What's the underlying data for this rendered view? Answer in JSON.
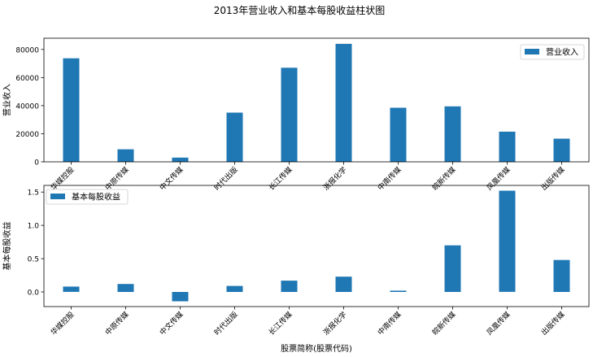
{
  "chart_data": [
    {
      "type": "bar",
      "title": "2013年营业收入和基本每股收益柱状图",
      "categories": [
        "华媒控股",
        "中原传媒",
        "中文传媒",
        "时代出版",
        "长江传媒",
        "浙报化学",
        "中南传媒",
        "皖新传媒",
        "凤凰传媒",
        "出版传媒"
      ],
      "series": [
        {
          "name": "营业收入",
          "values": [
            73700,
            8900,
            3000,
            35000,
            67000,
            84000,
            38500,
            39500,
            21500,
            16500
          ],
          "color": "#1f77b4"
        }
      ],
      "xlabel": "",
      "ylabel": "营业收入",
      "ylim": [
        0,
        88000
      ],
      "yticks": [
        0,
        20000,
        40000,
        60000,
        80000
      ],
      "legend": "top-right",
      "grid": false
    },
    {
      "type": "bar",
      "categories": [
        "华媒控股",
        "中原传媒",
        "中文传媒",
        "时代出版",
        "长江传媒",
        "浙报化学",
        "中南传媒",
        "皖新传媒",
        "凤凰传媒",
        "出版传媒"
      ],
      "series": [
        {
          "name": "基本每股收益",
          "values": [
            0.08,
            0.12,
            -0.14,
            0.09,
            0.17,
            0.23,
            0.02,
            0.7,
            1.52,
            0.48
          ],
          "color": "#1f77b4"
        }
      ],
      "xlabel": "股票简称(股票代码)",
      "ylabel": "基本每股收益",
      "ylim": [
        -0.22,
        1.6
      ],
      "yticks": [
        0.0,
        0.5,
        1.0,
        1.5
      ],
      "yticklabels": [
        "0.0",
        "0.5",
        "1.0",
        "1.5"
      ],
      "legend": "top-left",
      "grid": false
    }
  ]
}
